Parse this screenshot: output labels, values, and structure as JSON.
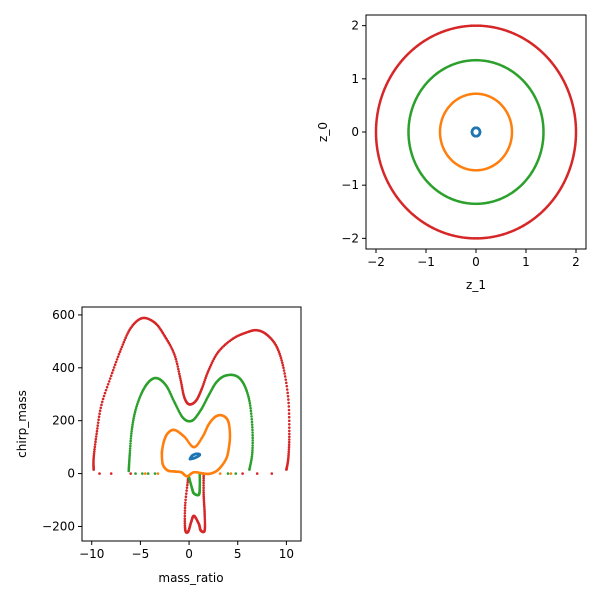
{
  "chart_data": [
    {
      "type": "scatter",
      "panel": "top-right",
      "xlabel": "z_1",
      "ylabel": "z_0",
      "xlim": [
        -2.2,
        2.2
      ],
      "ylim": [
        -2.2,
        2.2
      ],
      "xticks": [
        -2,
        -1,
        0,
        1,
        2
      ],
      "yticks": [
        -2,
        -1,
        0,
        1,
        2
      ],
      "grid": false,
      "series": [
        {
          "color": "#d62728",
          "shape": "circle",
          "radius": 2.0
        },
        {
          "color": "#2ca02c",
          "shape": "circle",
          "radius": 1.35
        },
        {
          "color": "#ff7f0e",
          "shape": "circle",
          "radius": 0.72
        },
        {
          "color": "#1f77b4",
          "shape": "circle",
          "radius": 0.08
        }
      ]
    },
    {
      "type": "scatter",
      "panel": "bottom-left",
      "xlabel": "mass_ratio",
      "ylabel": "chirp_mass",
      "xlim": [
        -11,
        11.5
      ],
      "ylim": [
        -255,
        630
      ],
      "xticks": [
        -10,
        -5,
        0,
        5,
        10
      ],
      "yticks": [
        -200,
        0,
        200,
        400,
        600
      ],
      "grid": false,
      "series": [
        {
          "color": "#d62728",
          "points": [
            [
              -9.8,
              15
            ],
            [
              -9.8,
              60
            ],
            [
              -9.5,
              150
            ],
            [
              -9.0,
              260
            ],
            [
              -8.0,
              370
            ],
            [
              -7.0,
              470
            ],
            [
              -6.0,
              550
            ],
            [
              -4.8,
              588
            ],
            [
              -3.5,
              570
            ],
            [
              -2.5,
              520
            ],
            [
              -1.5,
              450
            ],
            [
              -0.9,
              360
            ],
            [
              -0.5,
              290
            ],
            [
              0,
              262
            ],
            [
              0.7,
              275
            ],
            [
              1.3,
              320
            ],
            [
              2.0,
              390
            ],
            [
              3.0,
              460
            ],
            [
              4.5,
              510
            ],
            [
              6.0,
              535
            ],
            [
              7.0,
              542
            ],
            [
              8.0,
              525
            ],
            [
              9.0,
              480
            ],
            [
              9.7,
              400
            ],
            [
              10.2,
              280
            ],
            [
              10.3,
              150
            ],
            [
              10.2,
              60
            ],
            [
              10.0,
              15
            ]
          ],
          "tail": [
            [
              1.5,
              0
            ],
            [
              1.5,
              -80
            ],
            [
              1.6,
              -150
            ],
            [
              1.6,
              -215
            ],
            [
              1.2,
              -215
            ],
            [
              1.0,
              -190
            ],
            [
              0.5,
              -160
            ],
            [
              0.2,
              -185
            ],
            [
              -0.1,
              -220
            ],
            [
              -0.4,
              -210
            ],
            [
              -0.4,
              -120
            ],
            [
              -0.1,
              -20
            ]
          ],
          "baseline": [
            [
              -9.2,
              0
            ],
            [
              -8.0,
              0
            ],
            [
              -6.0,
              0
            ],
            [
              5.5,
              0
            ],
            [
              7.0,
              0
            ],
            [
              8.5,
              0
            ]
          ]
        },
        {
          "color": "#2ca02c",
          "points": [
            [
              -6.2,
              10
            ],
            [
              -6.1,
              70
            ],
            [
              -5.9,
              160
            ],
            [
              -5.5,
              240
            ],
            [
              -4.8,
              310
            ],
            [
              -4.0,
              352
            ],
            [
              -3.2,
              360
            ],
            [
              -2.3,
              330
            ],
            [
              -1.5,
              270
            ],
            [
              -0.6,
              210
            ],
            [
              0.3,
              200
            ],
            [
              1.2,
              240
            ],
            [
              2.0,
              295
            ],
            [
              2.8,
              345
            ],
            [
              3.7,
              370
            ],
            [
              4.8,
              370
            ],
            [
              5.6,
              340
            ],
            [
              6.2,
              275
            ],
            [
              6.5,
              175
            ],
            [
              6.5,
              80
            ],
            [
              6.2,
              15
            ]
          ],
          "tail": [
            [
              1.1,
              0
            ],
            [
              1.1,
              -50
            ],
            [
              1.0,
              -80
            ],
            [
              0.5,
              -75
            ],
            [
              0.3,
              -55
            ],
            [
              0,
              -15
            ]
          ],
          "baseline": [
            [
              -5.5,
              0
            ],
            [
              -4.8,
              0
            ],
            [
              -4.2,
              0
            ],
            [
              -3.5,
              0
            ],
            [
              4.0,
              0
            ],
            [
              4.8,
              0
            ]
          ]
        },
        {
          "color": "#ff7f0e",
          "points": [
            [
              -2.8,
              80
            ],
            [
              -2.6,
              120
            ],
            [
              -2.2,
              152
            ],
            [
              -1.5,
              165
            ],
            [
              -0.5,
              140
            ],
            [
              0.5,
              100
            ],
            [
              1.4,
              140
            ],
            [
              2.0,
              185
            ],
            [
              2.7,
              215
            ],
            [
              3.4,
              220
            ],
            [
              4.0,
              200
            ],
            [
              4.2,
              150
            ],
            [
              4.1,
              100
            ],
            [
              3.8,
              55
            ],
            [
              3.0,
              15
            ],
            [
              2.2,
              0
            ],
            [
              1.5,
              0
            ],
            [
              0.5,
              5
            ],
            [
              -0.2,
              -10
            ],
            [
              -0.8,
              5
            ],
            [
              -1.5,
              8
            ],
            [
              -2.2,
              12
            ],
            [
              -2.7,
              35
            ],
            [
              -2.8,
              80
            ]
          ],
          "tail": [],
          "baseline": [
            [
              -4.5,
              0
            ],
            [
              -3.2,
              0
            ],
            [
              3.2,
              0
            ],
            [
              4.3,
              0
            ]
          ]
        },
        {
          "color": "#1f77b4",
          "points": [
            [
              0.1,
              55
            ],
            [
              0.5,
              58
            ],
            [
              0.9,
              65
            ],
            [
              1.1,
              72
            ],
            [
              0.8,
              75
            ],
            [
              0.4,
              70
            ],
            [
              0.2,
              62
            ],
            [
              0.1,
              55
            ]
          ],
          "tail": [],
          "baseline": []
        }
      ]
    }
  ]
}
